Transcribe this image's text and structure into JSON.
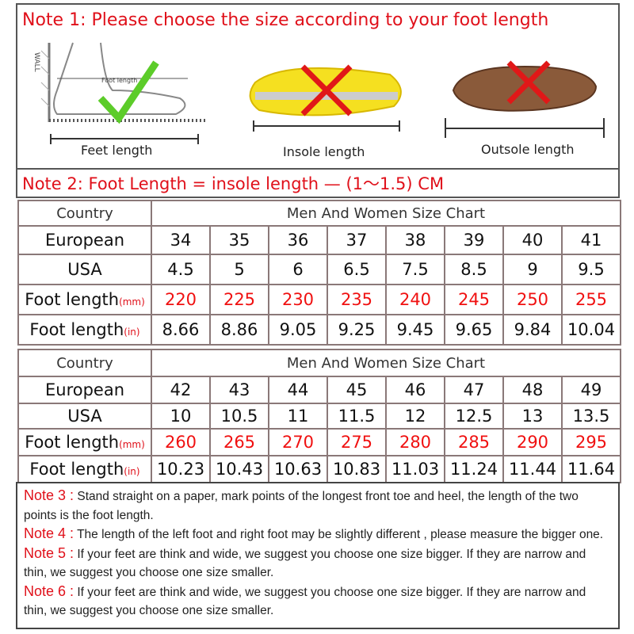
{
  "note1": "Note 1: Please choose the size according to your foot length",
  "illustrations": [
    {
      "label": "Feet length",
      "inner_labels": [
        "WALL",
        "Foot length"
      ],
      "mark": "check",
      "mark_color": "#5ccc2a"
    },
    {
      "label": "Insole length",
      "mark": "cross",
      "mark_color": "#e01818"
    },
    {
      "label": "Outsole length",
      "mark": "cross",
      "mark_color": "#e01818"
    }
  ],
  "note2": "Note 2: Foot Length = insole length  — (1～1.5) CM",
  "tables": [
    {
      "country": "Country",
      "title": "Men And Women Size Chart",
      "rows": [
        {
          "label": "European",
          "unit": "",
          "values": [
            "34",
            "35",
            "36",
            "37",
            "38",
            "39",
            "40",
            "41"
          ]
        },
        {
          "label": "USA",
          "unit": "",
          "values": [
            "4.5",
            "5",
            "6",
            "6.5",
            "7.5",
            "8.5",
            "9",
            "9.5"
          ]
        },
        {
          "label": "Foot length",
          "unit": "(mm)",
          "values": [
            "220",
            "225",
            "230",
            "235",
            "240",
            "245",
            "250",
            "255"
          ]
        },
        {
          "label": "Foot length",
          "unit": "(in)",
          "values": [
            "8.66",
            "8.86",
            "9.05",
            "9.25",
            "9.45",
            "9.65",
            "9.84",
            "10.04"
          ]
        }
      ]
    },
    {
      "country": "Country",
      "title": "Men And Women Size Chart",
      "rows": [
        {
          "label": "European",
          "unit": "",
          "values": [
            "42",
            "43",
            "44",
            "45",
            "46",
            "47",
            "48",
            "49"
          ]
        },
        {
          "label": "USA",
          "unit": "",
          "values": [
            "10",
            "10.5",
            "11",
            "11.5",
            "12",
            "12.5",
            "13",
            "13.5"
          ]
        },
        {
          "label": "Foot length",
          "unit": "(mm)",
          "values": [
            "260",
            "265",
            "270",
            "275",
            "280",
            "285",
            "290",
            "295"
          ]
        },
        {
          "label": "Foot length",
          "unit": "(in)",
          "values": [
            "10.23",
            "10.43",
            "10.63",
            "10.83",
            "11.03",
            "11.24",
            "11.44",
            "11.64"
          ]
        }
      ]
    }
  ],
  "notes": [
    {
      "label": "Note 3 :",
      "text": " Stand straight on a paper, mark points of the longest front toe and heel, the length of the two points is the foot length."
    },
    {
      "label": "Note 4 :",
      "text": " The length of the left foot and right foot may be slightly different , please measure the bigger one."
    },
    {
      "label": "Note 5 :",
      "text": " If your feet are think and wide, we suggest you choose one size bigger. If they are narrow and thin, we suggest you choose one size smaller."
    },
    {
      "label": "Note 6 :",
      "text": " If your feet are think and wide, we suggest you choose one size bigger. If they are narrow and thin, we suggest you choose one size smaller."
    }
  ]
}
